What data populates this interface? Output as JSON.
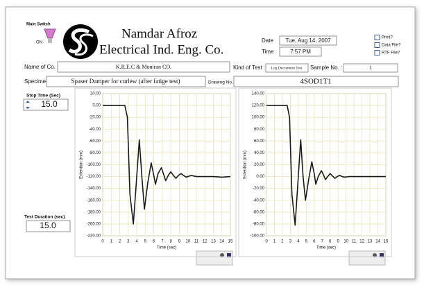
{
  "switch": {
    "label": "Main Switch",
    "state": "ON"
  },
  "company": {
    "name": "Namdar Afroz",
    "line2": "Electrical Ind. Eng. Co."
  },
  "date": {
    "label": "Date",
    "value": "Tue, Aug 14, 2007"
  },
  "time": {
    "label": "Time",
    "value": "7:57 PM"
  },
  "options": [
    "Print?",
    "Data File?",
    "RTF File?"
  ],
  "fields": {
    "name_of_co": {
      "label": "Name of Co. :",
      "value": "K.R.E.C & Moniran CO."
    },
    "kind_of_test": {
      "label": "Kind of Test :",
      "value": "Log Decrement Test"
    },
    "sample_no": {
      "label": "Sample No. :",
      "value": "1"
    },
    "specimen": {
      "label": "Specimen:",
      "value": "Spaser Damper for curlew (after fatige test)"
    },
    "drawing_no": {
      "label": "Drawing No.",
      "value": "4SOD1T1"
    },
    "stop_time": {
      "label": "Stop Time (Sec)",
      "value": "15.0"
    },
    "test_duration": {
      "label": "Test Duration (sec)",
      "value": "15.0"
    }
  },
  "chart_data": [
    {
      "type": "line",
      "xlabel": "Time  (sec)",
      "ylabel": "Extention (mm)",
      "color": "#1a1a1a",
      "grid": true,
      "grid_color": "#ebe6b8",
      "x": [
        0,
        2.6,
        2.9,
        3.2,
        3.6,
        3.95,
        4.3,
        4.6,
        4.9,
        5.3,
        5.7,
        6.0,
        6.2,
        6.5,
        6.9,
        7.2,
        7.4,
        7.7,
        8.0,
        8.3,
        8.6,
        8.9,
        9.2,
        9.5,
        9.8,
        10.4,
        11,
        12,
        13,
        14,
        15
      ],
      "values": [
        0,
        0,
        -20,
        -150,
        -200,
        -130,
        -58,
        -120,
        -175,
        -130,
        -97,
        -118,
        -133,
        -115,
        -105,
        -118,
        -127,
        -118,
        -112,
        -118,
        -123,
        -118,
        -115,
        -118,
        -121,
        -118,
        -120,
        -120,
        -120,
        -121,
        -120
      ],
      "xlim": [
        0,
        15
      ],
      "xticks": [
        0,
        1,
        2,
        3,
        4,
        5,
        6,
        7,
        8,
        9,
        10,
        11,
        12,
        13,
        14,
        15
      ],
      "ylim": [
        -220,
        20
      ],
      "yticks": [
        {
          "value": -220,
          "label": "-220.00"
        },
        {
          "value": -200,
          "label": "-200.00"
        },
        {
          "value": -180,
          "label": "-180.00"
        },
        {
          "value": -160,
          "label": "-160.00"
        },
        {
          "value": -140,
          "label": "-140.00"
        },
        {
          "value": -120,
          "label": "-120.00"
        },
        {
          "value": -100,
          "label": "-100.00"
        },
        {
          "value": -80,
          "label": "-80.00"
        },
        {
          "value": -60,
          "label": "-60.00"
        },
        {
          "value": -40,
          "label": "-40.00"
        },
        {
          "value": -20,
          "label": "-20.00"
        },
        {
          "value": 0,
          "label": "0.00"
        },
        {
          "value": 20,
          "label": "20.00"
        }
      ]
    },
    {
      "type": "line",
      "xlabel": "Time  (sec)",
      "ylabel": "Extention (mm)",
      "color": "#1a1a1a",
      "grid": true,
      "grid_color": "#ebe6b8",
      "x": [
        0,
        2.6,
        2.9,
        3.2,
        3.6,
        3.95,
        4.3,
        4.6,
        4.9,
        5.3,
        5.7,
        6.0,
        6.2,
        6.5,
        6.9,
        7.2,
        7.4,
        7.7,
        8.0,
        8.3,
        8.6,
        8.9,
        9.2,
        9.5,
        9.8,
        10.4,
        11,
        12,
        13,
        14,
        15
      ],
      "values": [
        120,
        120,
        100,
        -30,
        -82,
        -10,
        62,
        0,
        -40,
        -5,
        25,
        5,
        -13,
        0,
        10,
        2,
        -5,
        0,
        5,
        1,
        -3,
        0,
        2,
        0,
        -1,
        0,
        0,
        0,
        0,
        0,
        0
      ],
      "xlim": [
        0,
        15
      ],
      "xticks": [
        0,
        1,
        2,
        3,
        4,
        5,
        6,
        7,
        8,
        9,
        10,
        11,
        12,
        13,
        14,
        15
      ],
      "ylim": [
        -100,
        140
      ],
      "yticks": [
        {
          "value": -100,
          "label": "-100.00"
        },
        {
          "value": -80,
          "label": "-80.00"
        },
        {
          "value": -60,
          "label": "-60.00"
        },
        {
          "value": -40,
          "label": "-40.00"
        },
        {
          "value": -20,
          "label": "-20.00"
        },
        {
          "value": 0,
          "label": "0.00"
        },
        {
          "value": 20,
          "label": "20.00"
        },
        {
          "value": 40,
          "label": "40.00"
        },
        {
          "value": 60,
          "label": "60.00"
        },
        {
          "value": 80,
          "label": "80.00"
        },
        {
          "value": 100,
          "label": "100.00"
        },
        {
          "value": 120,
          "label": "120.00"
        },
        {
          "value": 140,
          "label": "140.00"
        }
      ]
    }
  ]
}
